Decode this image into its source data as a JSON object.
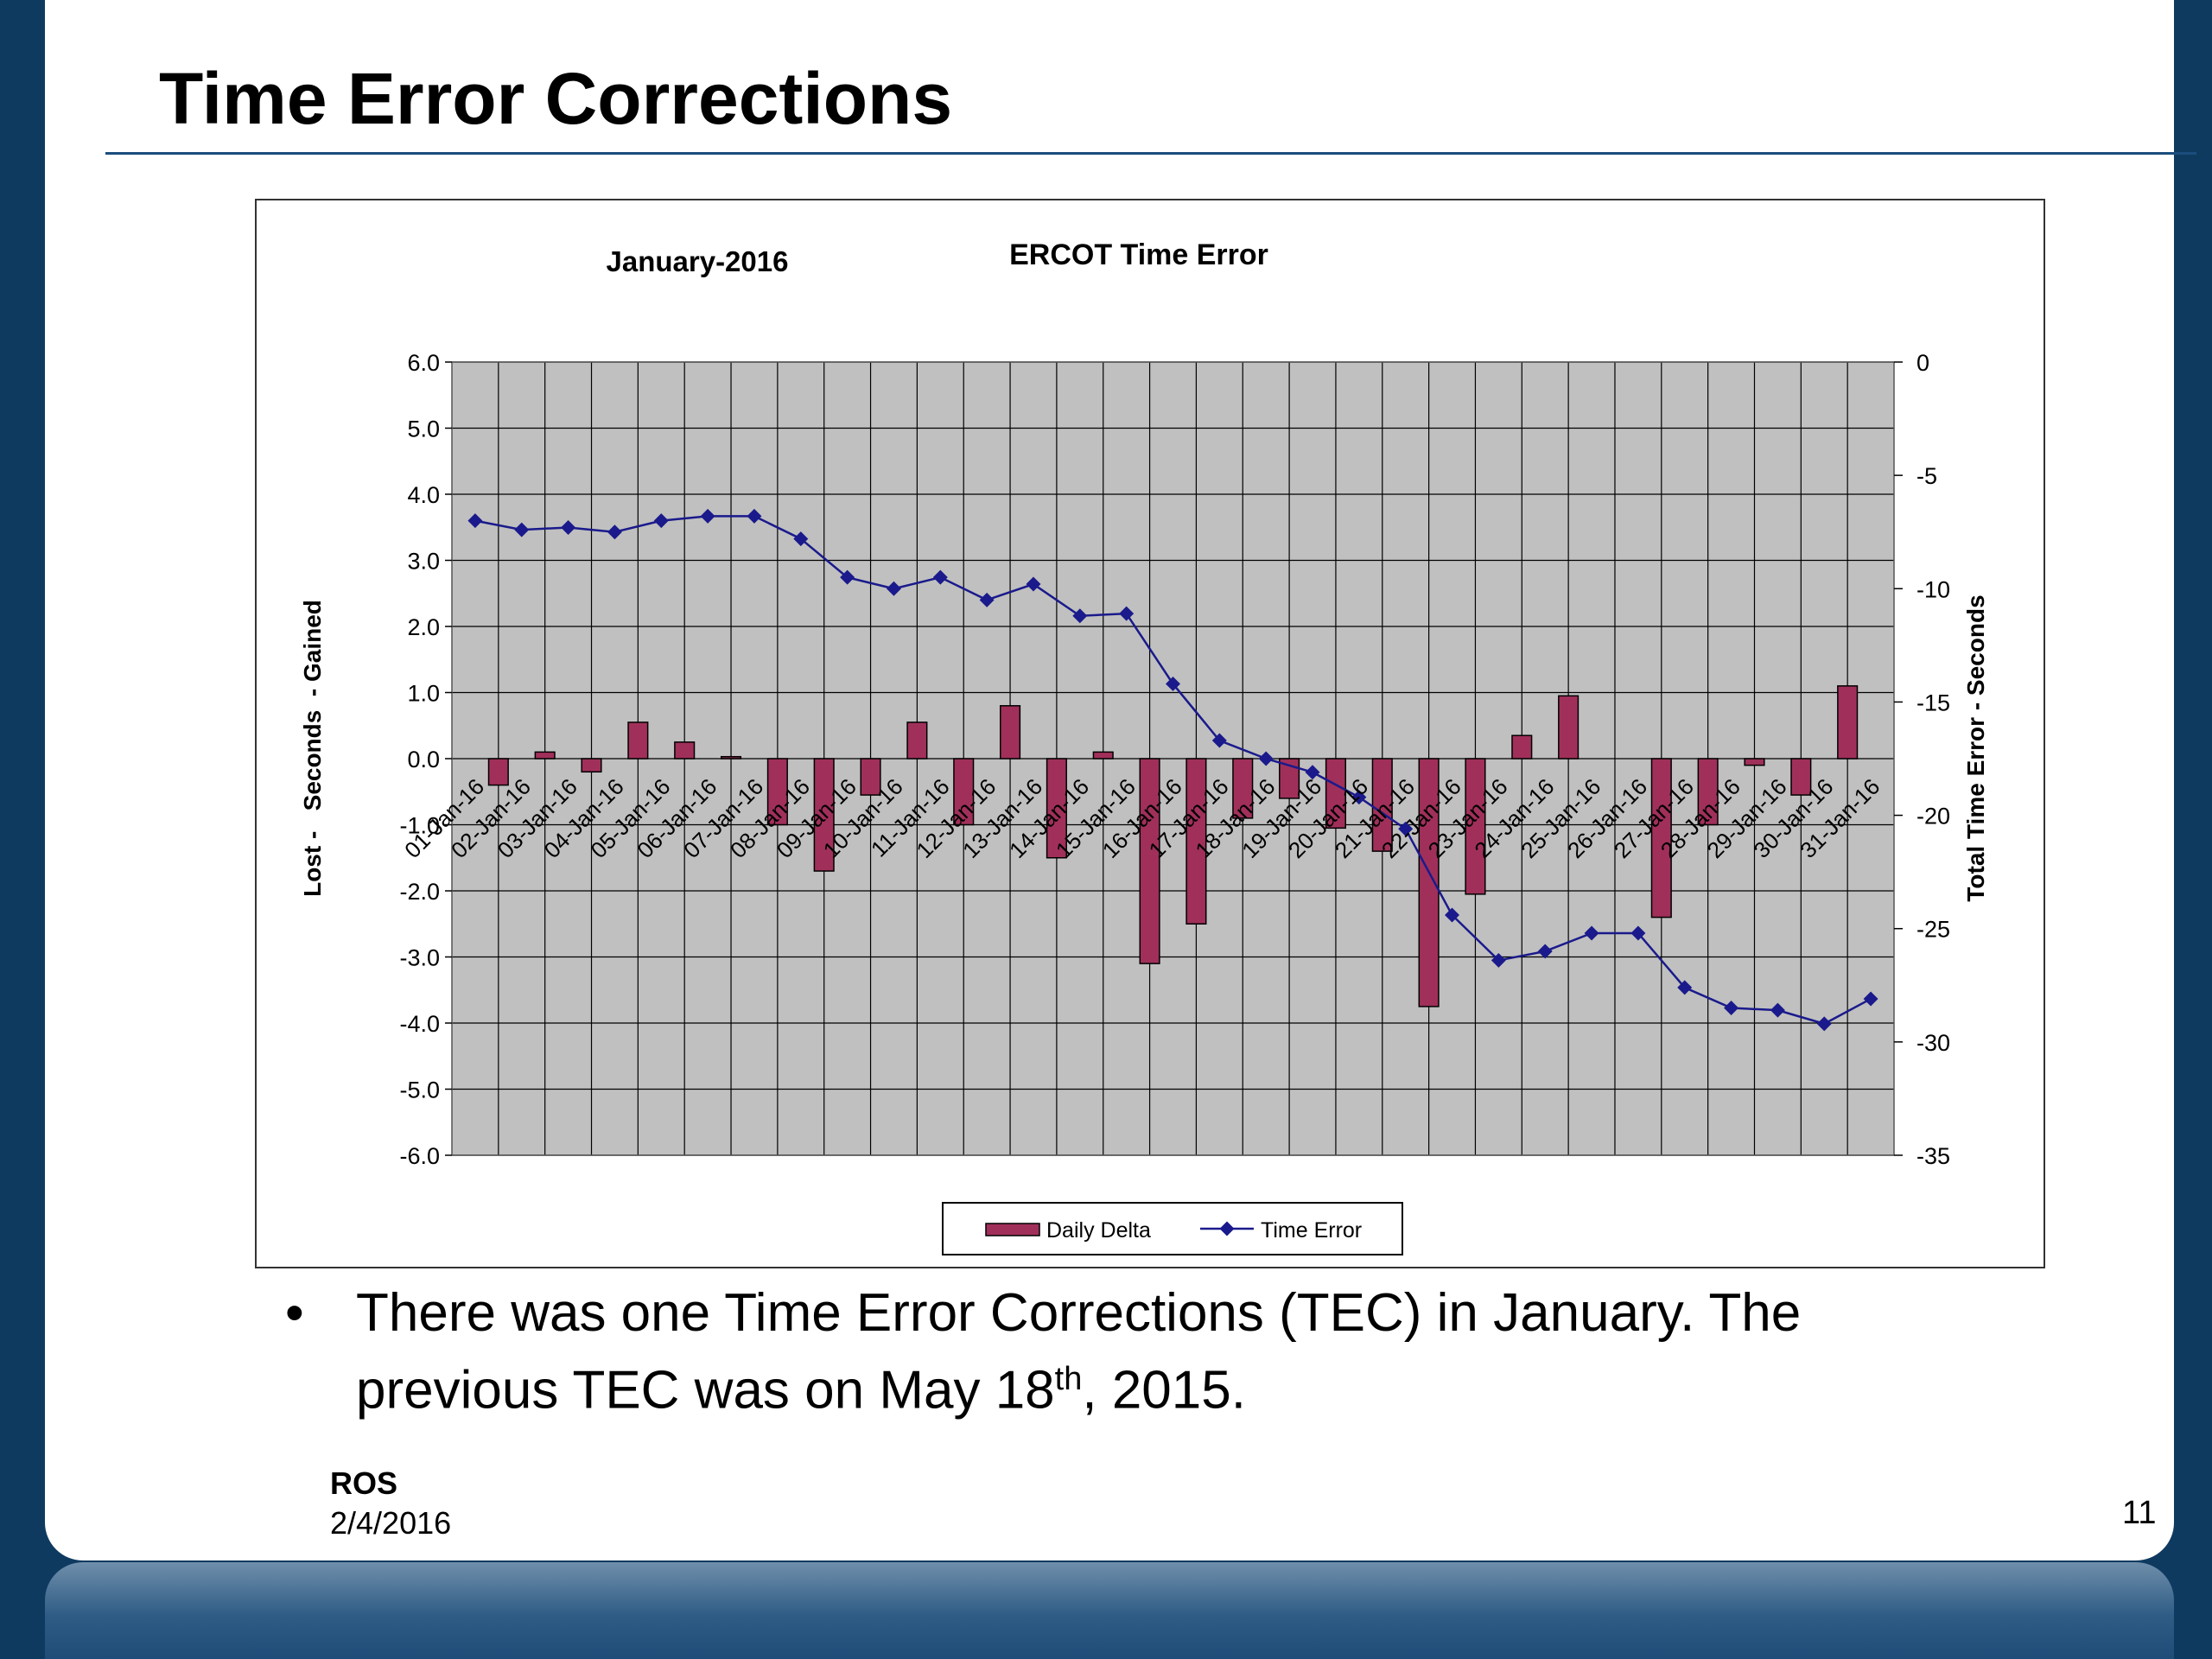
{
  "slide": {
    "title": "Time Error Corrections",
    "bullet_parts": {
      "before": "There was one Time Error Corrections (TEC) in January.  The previous TEC was on May 18",
      "sup": "th",
      "after": ", 2015."
    },
    "footer_org": "ROS",
    "footer_date": "2/4/2016",
    "page_number": "11"
  },
  "colors": {
    "bar": "#a0305a",
    "line": "#1a1a8c",
    "plot_bg": "#c0c0c0"
  },
  "chart_data": {
    "type": "bar",
    "title": "ERCOT Time Error",
    "subtitle": "January-2016",
    "ylabel": "Lost -   Seconds  - Gained",
    "y2label": "Total Time Error - Seconds",
    "ylim": [
      -6,
      6
    ],
    "y2lim": [
      -35,
      0
    ],
    "y_ticks": [
      "6.0",
      "5.0",
      "4.0",
      "3.0",
      "2.0",
      "1.0",
      "0.0",
      "-1.0",
      "-2.0",
      "-3.0",
      "-4.0",
      "-5.0",
      "-6.0"
    ],
    "y2_ticks": [
      "0",
      "-5",
      "-10",
      "-15",
      "-20",
      "-25",
      "-30",
      "-35"
    ],
    "grid": true,
    "legend_position": "bottom",
    "categories": [
      "01-Jan-16",
      "02-Jan-16",
      "03-Jan-16",
      "04-Jan-16",
      "05-Jan-16",
      "06-Jan-16",
      "07-Jan-16",
      "08-Jan-16",
      "09-Jan-16",
      "10-Jan-16",
      "11-Jan-16",
      "12-Jan-16",
      "13-Jan-16",
      "14-Jan-16",
      "15-Jan-16",
      "16-Jan-16",
      "17-Jan-16",
      "18-Jan-16",
      "19-Jan-16",
      "20-Jan-16",
      "21-Jan-16",
      "22-Jan-16",
      "23-Jan-16",
      "24-Jan-16",
      "25-Jan-16",
      "26-Jan-16",
      "27-Jan-16",
      "28-Jan-16",
      "29-Jan-16",
      "30-Jan-16",
      "31-Jan-16"
    ],
    "series": [
      {
        "name": "Daily Delta",
        "type": "bar",
        "axis": "left",
        "values": [
          -0.4,
          0.1,
          -0.2,
          0.55,
          0.25,
          0.03,
          -1.0,
          -1.7,
          -0.55,
          0.55,
          -1.0,
          0.8,
          -1.5,
          0.1,
          -3.1,
          -2.5,
          -0.9,
          -0.6,
          -1.05,
          -1.4,
          -3.75,
          -2.05,
          0.35,
          0.95,
          0.0,
          -2.4,
          -1.0,
          -0.1,
          -0.55,
          1.1,
          0.0
        ]
      },
      {
        "name": "Time Error",
        "type": "line",
        "axis": "right",
        "values": [
          -7.0,
          -7.4,
          -7.3,
          -7.5,
          -7.0,
          -6.8,
          -6.8,
          -7.8,
          -9.5,
          -10.0,
          -9.5,
          -10.5,
          -9.8,
          -11.2,
          -11.1,
          -14.2,
          -16.7,
          -17.5,
          -18.1,
          -19.2,
          -20.6,
          -24.4,
          -26.4,
          -26.0,
          -25.2,
          -25.2,
          -27.6,
          -28.5,
          -28.6,
          -29.2,
          -28.1
        ]
      }
    ]
  }
}
